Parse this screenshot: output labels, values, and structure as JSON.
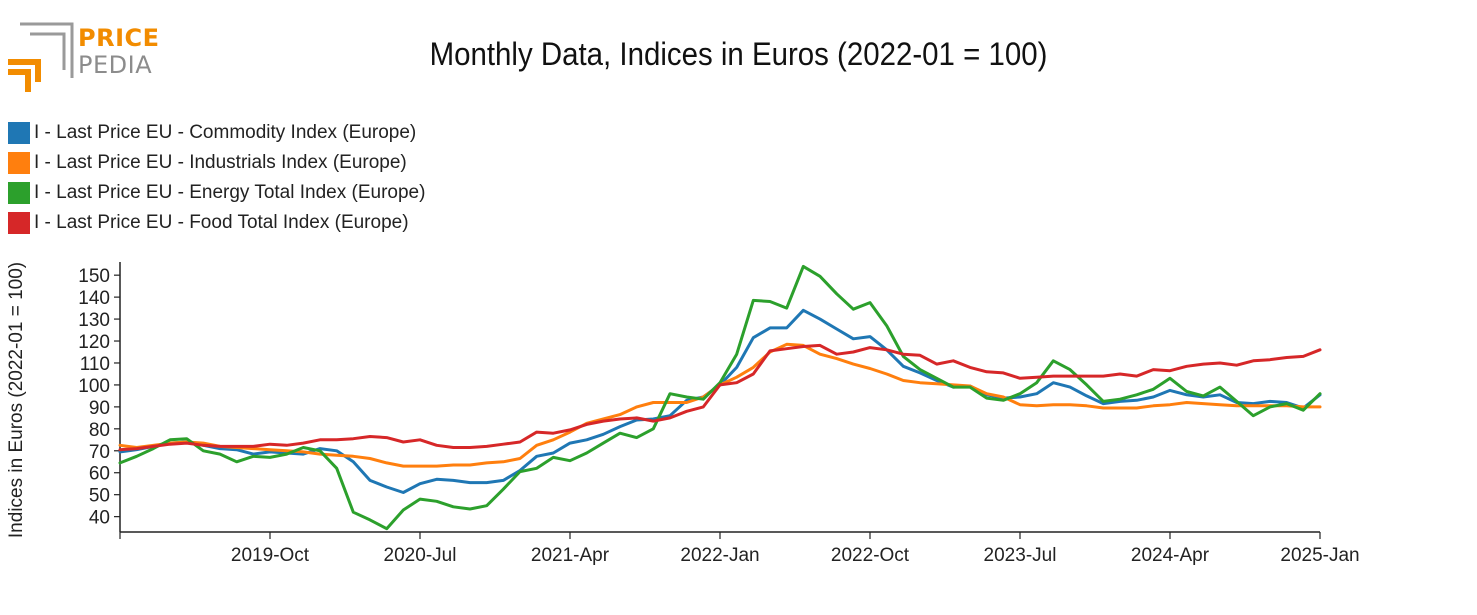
{
  "brand": {
    "top": "PRICE",
    "bottom": "PEDIA"
  },
  "colors": {
    "commodity": "#1f77b4",
    "industrials": "#ff7f0e",
    "energy": "#2ca02c",
    "food": "#d62728"
  },
  "chart_data": {
    "type": "line",
    "title": "Monthly Data, Indices in Euros (2022-01 = 100)",
    "xlabel": "",
    "ylabel": "Indices in Euros (2022-01 = 100)",
    "ylim": [
      33,
      156
    ],
    "yticks": [
      40,
      50,
      60,
      70,
      80,
      90,
      100,
      110,
      120,
      130,
      140,
      150
    ],
    "x_start": "2019-01",
    "x_end": "2025-01",
    "xticks": [
      {
        "index": 9,
        "label": "2019-Oct"
      },
      {
        "index": 18,
        "label": "2020-Jul"
      },
      {
        "index": 27,
        "label": "2021-Apr"
      },
      {
        "index": 36,
        "label": "2022-Jan"
      },
      {
        "index": 45,
        "label": "2022-Oct"
      },
      {
        "index": 54,
        "label": "2023-Jul"
      },
      {
        "index": 63,
        "label": "2024-Apr"
      },
      {
        "index": 72,
        "label": "2025-Jan"
      }
    ],
    "legend_position": "top-left",
    "series": [
      {
        "name": "I - Last Price EU - Commodity Index (Europe)",
        "color": "#1f77b4",
        "values": [
          69.5,
          70.5,
          72,
          73.5,
          74,
          72.5,
          71,
          70.5,
          68.5,
          69.5,
          69,
          68.5,
          71,
          70,
          65,
          56.5,
          53.5,
          51,
          55,
          57,
          56.5,
          55.5,
          55.5,
          56.5,
          61,
          67.5,
          69,
          73.5,
          75,
          77.5,
          81,
          84,
          84.5,
          86,
          93,
          94.5,
          100,
          108,
          121.5,
          126,
          126,
          134,
          130,
          125.5,
          121,
          122,
          116,
          108.5,
          105.5,
          102,
          99,
          99.5,
          95.5,
          94,
          94.5,
          96,
          101,
          99,
          95,
          91.5,
          92.5,
          93,
          94.5,
          97.5,
          95.5,
          94.5,
          95.5,
          92,
          91.5,
          92.5,
          92,
          89.5,
          95.5
        ]
      },
      {
        "name": "I - Last Price EU - Industrials Index (Europe)",
        "color": "#ff7f0e",
        "values": [
          72.5,
          71.5,
          72.5,
          73.5,
          74,
          73.5,
          72,
          71.5,
          71,
          70.5,
          70,
          69.5,
          68.5,
          68,
          67.5,
          66.5,
          64.5,
          63,
          63,
          63,
          63.5,
          63.5,
          64.5,
          65,
          66.5,
          72.5,
          75,
          78.5,
          82.5,
          84.5,
          86.5,
          90,
          92,
          92,
          92,
          94.5,
          100,
          103.5,
          108,
          115,
          118.5,
          118,
          114,
          112,
          109.5,
          107.5,
          105,
          102,
          101,
          100.5,
          100,
          99.5,
          96,
          94.5,
          91,
          90.5,
          91,
          91,
          90.5,
          89.5,
          89.5,
          89.5,
          90.5,
          91,
          92,
          91.5,
          91,
          90.5,
          90.5,
          90.5,
          90.5,
          90,
          90
        ]
      },
      {
        "name": "I - Last Price EU - Energy Total Index (Europe)",
        "color": "#2ca02c",
        "values": [
          64.5,
          67.5,
          71,
          75,
          75.5,
          70,
          68.5,
          65,
          67.5,
          67,
          68.5,
          71.5,
          70,
          62,
          42,
          38.5,
          34.5,
          43,
          48,
          47,
          44.5,
          43.5,
          45,
          52.5,
          60.5,
          62,
          67,
          65.5,
          69,
          73.5,
          78,
          76,
          80,
          96,
          94.5,
          93.5,
          101,
          114,
          138.5,
          138,
          135,
          154,
          149.5,
          141.5,
          134.5,
          137.5,
          127,
          113,
          107,
          103,
          99,
          99,
          94,
          93,
          96,
          101,
          111,
          107,
          100,
          92.5,
          93.5,
          95.5,
          98,
          103,
          97,
          95,
          99,
          92.5,
          86,
          90,
          91.5,
          88.5,
          96
        ]
      },
      {
        "name": "I - Last Price EU - Food Total Index (Europe)",
        "color": "#d62728",
        "values": [
          70.5,
          71,
          72,
          73,
          73.5,
          72.5,
          72,
          72,
          72,
          73,
          72.5,
          73.5,
          75,
          75,
          75.5,
          76.5,
          76,
          74,
          75,
          72.5,
          71.5,
          71.5,
          72,
          73,
          74,
          78.5,
          78,
          79.5,
          82,
          83.5,
          84.5,
          85,
          83.5,
          85,
          88,
          90,
          100,
          101,
          105,
          115.5,
          116.5,
          117.5,
          118,
          114,
          115,
          117,
          116,
          114,
          113.5,
          109.5,
          111,
          108,
          106,
          105.5,
          103,
          103.5,
          104,
          104,
          104,
          104,
          105,
          104,
          107,
          106.5,
          108.5,
          109.5,
          110,
          109,
          111,
          111.5,
          112.5,
          113,
          116
        ]
      }
    ]
  }
}
